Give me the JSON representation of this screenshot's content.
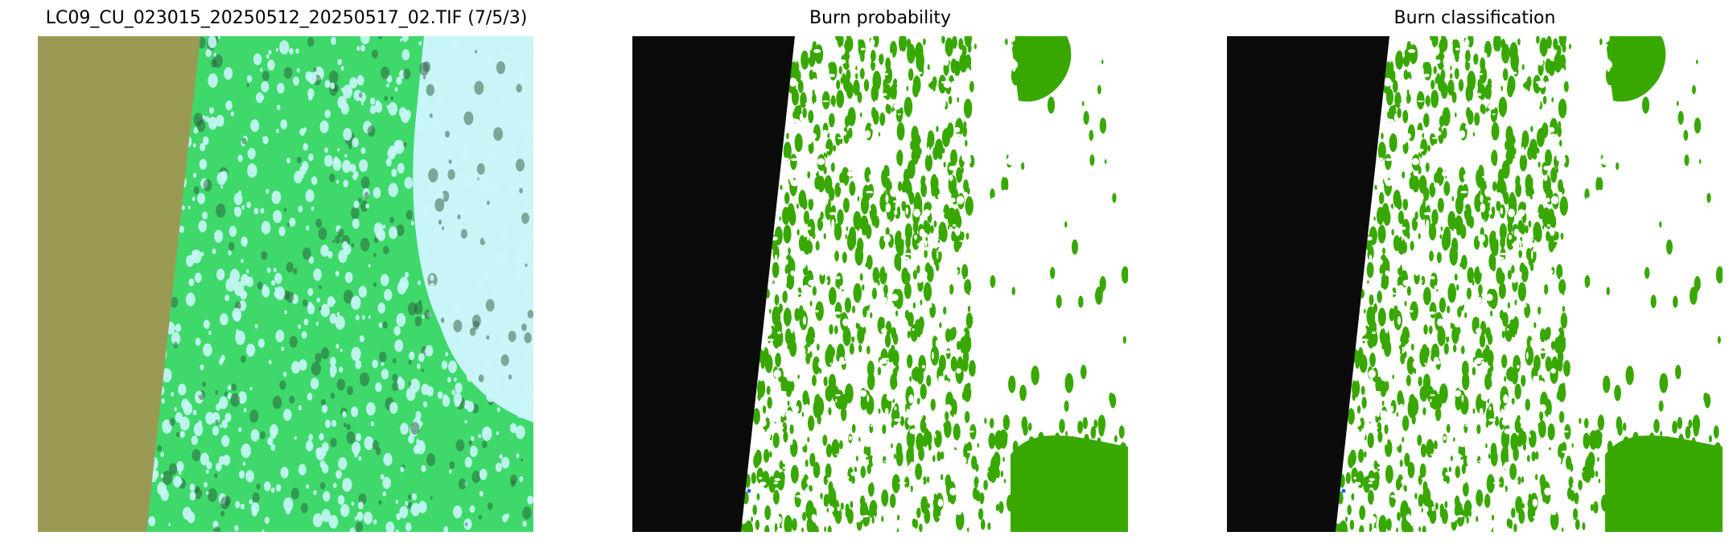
{
  "panels": [
    {
      "title": "LC09_CU_023015_20250512_20250517_02.TIF (7/5/3)",
      "kind": "composite",
      "colors": {
        "nodata": "#9a9a54",
        "vegetation": "#3ed96a",
        "cloud": "#c8f6f8",
        "dark": "#2a5a3a"
      }
    },
    {
      "title": "Burn probability",
      "kind": "mask",
      "colors": {
        "nodata": "#0b0b0b",
        "burn": "#38a800",
        "background": "#ffffff",
        "uncertain": "#a0a0a0",
        "water": "#1060ff"
      }
    },
    {
      "title": "Burn classification",
      "kind": "mask",
      "colors": {
        "nodata": "#0b0b0b",
        "burn": "#38a800",
        "background": "#ffffff",
        "uncertain": "#a0a0a0",
        "water": "#1060ff"
      }
    }
  ]
}
